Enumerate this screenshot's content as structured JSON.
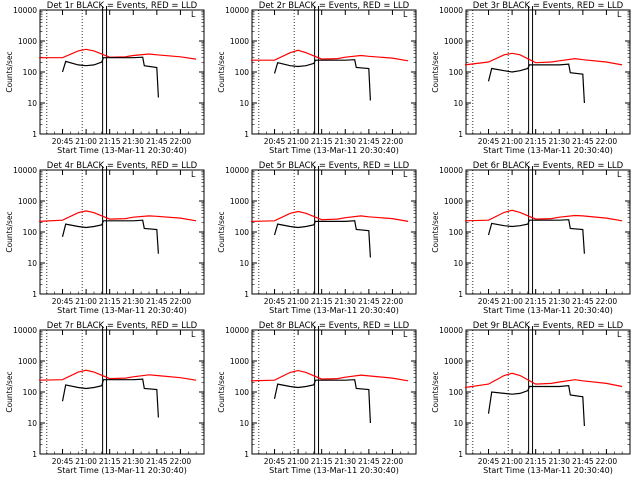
{
  "chart_data": [
    {
      "type": "line",
      "title": "Det 1r BLACK = Events, RED = LLD",
      "xlabel": "Start Time (13-Mar-11 20:30:40)",
      "ylabel": "Counts/sec",
      "yscale": "log",
      "ylim": [
        1,
        10000
      ],
      "yticks": [
        "1",
        "10",
        "100",
        "1000",
        "10000"
      ],
      "xlim": [
        "20:30:40",
        "22:15:00"
      ],
      "xticks": [
        "20:45",
        "21:00",
        "21:15",
        "21:30",
        "21:45",
        "22:00"
      ],
      "legend_letter": "L",
      "series": [
        {
          "name": "RED",
          "color": "#ff0000",
          "x": [
            "20:30",
            "20:45",
            "20:55",
            "21:00",
            "21:05",
            "21:15",
            "21:25",
            "21:30",
            "21:40",
            "21:45",
            "22:00",
            "22:10"
          ],
          "values": [
            290,
            290,
            480,
            540,
            480,
            300,
            310,
            340,
            380,
            360,
            310,
            260
          ]
        },
        {
          "name": "BLACK",
          "color": "#000000",
          "x": [
            "20:45",
            "20:47",
            "20:55",
            "21:00",
            "21:05",
            "21:10",
            "21:11",
            "21:30",
            "21:36",
            "21:37",
            "21:45",
            "21:46"
          ],
          "values": [
            100,
            220,
            170,
            160,
            170,
            210,
            290,
            290,
            300,
            160,
            140,
            15
          ]
        }
      ]
    },
    {
      "type": "line",
      "title": "Det 2r BLACK = Events, RED = LLD",
      "xlabel": "Start Time (13-Mar-11 20:30:40)",
      "ylabel": "Counts/sec",
      "yscale": "log",
      "ylim": [
        1,
        10000
      ],
      "yticks": [
        "1",
        "10",
        "100",
        "1000",
        "10000"
      ],
      "xlim": [
        "20:30:40",
        "22:15:00"
      ],
      "xticks": [
        "20:45",
        "21:00",
        "21:15",
        "21:30",
        "21:45",
        "22:00"
      ],
      "legend_letter": "L",
      "series": [
        {
          "name": "RED",
          "color": "#ff0000",
          "x": [
            "20:30",
            "20:45",
            "20:55",
            "21:00",
            "21:05",
            "21:15",
            "21:25",
            "21:30",
            "21:40",
            "21:45",
            "22:00",
            "22:10"
          ],
          "values": [
            240,
            240,
            420,
            500,
            420,
            260,
            270,
            300,
            340,
            320,
            280,
            230
          ]
        },
        {
          "name": "BLACK",
          "color": "#000000",
          "x": [
            "20:45",
            "20:47",
            "20:55",
            "21:00",
            "21:05",
            "21:10",
            "21:11",
            "21:30",
            "21:36",
            "21:37",
            "21:45",
            "21:46"
          ],
          "values": [
            90,
            200,
            160,
            150,
            160,
            190,
            240,
            240,
            250,
            140,
            130,
            12
          ]
        }
      ]
    },
    {
      "type": "line",
      "title": "Det 3r BLACK = Events, RED = LLD",
      "xlabel": "Start Time (13-Mar-11 20:30:40)",
      "ylabel": "Counts/sec",
      "yscale": "log",
      "ylim": [
        1,
        10000
      ],
      "yticks": [
        "1",
        "10",
        "100",
        "1000",
        "10000"
      ],
      "xlim": [
        "20:30:40",
        "22:15:00"
      ],
      "xticks": [
        "20:45",
        "21:00",
        "21:15",
        "21:30",
        "21:45",
        "22:00"
      ],
      "legend_letter": "L",
      "series": [
        {
          "name": "RED",
          "color": "#ff0000",
          "x": [
            "20:30",
            "20:45",
            "20:55",
            "21:00",
            "21:05",
            "21:15",
            "21:25",
            "21:30",
            "21:40",
            "21:45",
            "22:00",
            "22:10"
          ],
          "values": [
            170,
            210,
            360,
            400,
            360,
            200,
            210,
            230,
            270,
            250,
            210,
            170
          ]
        },
        {
          "name": "BLACK",
          "color": "#000000",
          "x": [
            "20:45",
            "20:47",
            "20:55",
            "21:00",
            "21:05",
            "21:10",
            "21:11",
            "21:30",
            "21:36",
            "21:37",
            "21:45",
            "21:46"
          ],
          "values": [
            50,
            130,
            110,
            100,
            110,
            130,
            170,
            170,
            180,
            95,
            85,
            10
          ]
        }
      ]
    },
    {
      "type": "line",
      "title": "Det 4r BLACK = Events, RED = LLD",
      "xlabel": "Start Time (13-Mar-11 20:30:40)",
      "ylabel": "Counts/sec",
      "yscale": "log",
      "ylim": [
        1,
        10000
      ],
      "yticks": [
        "1",
        "10",
        "100",
        "1000",
        "10000"
      ],
      "xlim": [
        "20:30:40",
        "22:15:00"
      ],
      "xticks": [
        "20:45",
        "21:00",
        "21:15",
        "21:30",
        "21:45",
        "22:00"
      ],
      "legend_letter": "L",
      "series": [
        {
          "name": "RED",
          "color": "#ff0000",
          "x": [
            "20:30",
            "20:45",
            "20:55",
            "21:00",
            "21:05",
            "21:15",
            "21:25",
            "21:30",
            "21:40",
            "21:45",
            "22:00",
            "22:10"
          ],
          "values": [
            220,
            240,
            420,
            480,
            420,
            260,
            270,
            300,
            330,
            320,
            280,
            230
          ]
        },
        {
          "name": "BLACK",
          "color": "#000000",
          "x": [
            "20:45",
            "20:47",
            "20:55",
            "21:00",
            "21:05",
            "21:10",
            "21:11",
            "21:30",
            "21:36",
            "21:37",
            "21:45",
            "21:46"
          ],
          "values": [
            70,
            180,
            150,
            140,
            150,
            170,
            230,
            230,
            240,
            130,
            120,
            20
          ]
        }
      ]
    },
    {
      "type": "line",
      "title": "Det 5r BLACK = Events, RED = LLD",
      "xlabel": "Start Time (13-Mar-11 20:30:40)",
      "ylabel": "Counts/sec",
      "yscale": "log",
      "ylim": [
        1,
        10000
      ],
      "yticks": [
        "1",
        "10",
        "100",
        "1000",
        "10000"
      ],
      "xlim": [
        "20:30:40",
        "22:15:00"
      ],
      "xticks": [
        "20:45",
        "21:00",
        "21:15",
        "21:30",
        "21:45",
        "22:00"
      ],
      "legend_letter": "L",
      "series": [
        {
          "name": "RED",
          "color": "#ff0000",
          "x": [
            "20:30",
            "20:45",
            "20:55",
            "21:00",
            "21:05",
            "21:15",
            "21:25",
            "21:30",
            "21:40",
            "21:45",
            "22:00",
            "22:10"
          ],
          "values": [
            220,
            230,
            400,
            460,
            400,
            250,
            260,
            290,
            330,
            310,
            270,
            220
          ]
        },
        {
          "name": "BLACK",
          "color": "#000000",
          "x": [
            "20:45",
            "20:47",
            "20:55",
            "21:00",
            "21:05",
            "21:10",
            "21:11",
            "21:30",
            "21:36",
            "21:37",
            "21:45",
            "21:46"
          ],
          "values": [
            80,
            180,
            150,
            140,
            150,
            170,
            220,
            220,
            230,
            120,
            110,
            15
          ]
        }
      ]
    },
    {
      "type": "line",
      "title": "Det 6r BLACK = Events, RED = LLD",
      "xlabel": "Start Time (13-Mar-11 20:30:40)",
      "ylabel": "Counts/sec",
      "yscale": "log",
      "ylim": [
        1,
        10000
      ],
      "yticks": [
        "1",
        "10",
        "100",
        "1000",
        "10000"
      ],
      "xlim": [
        "20:30:40",
        "22:15:00"
      ],
      "xticks": [
        "20:45",
        "21:00",
        "21:15",
        "21:30",
        "21:45",
        "22:00"
      ],
      "legend_letter": "L",
      "series": [
        {
          "name": "RED",
          "color": "#ff0000",
          "x": [
            "20:30",
            "20:45",
            "20:55",
            "21:00",
            "21:05",
            "21:15",
            "21:25",
            "21:30",
            "21:40",
            "21:45",
            "22:00",
            "22:10"
          ],
          "values": [
            230,
            240,
            430,
            500,
            430,
            260,
            270,
            300,
            340,
            330,
            280,
            230
          ]
        },
        {
          "name": "BLACK",
          "color": "#000000",
          "x": [
            "20:45",
            "20:47",
            "20:55",
            "21:00",
            "21:05",
            "21:10",
            "21:11",
            "21:30",
            "21:36",
            "21:37",
            "21:45",
            "21:46"
          ],
          "values": [
            80,
            190,
            160,
            150,
            160,
            180,
            240,
            240,
            250,
            130,
            120,
            20
          ]
        }
      ]
    },
    {
      "type": "line",
      "title": "Det 7r BLACK = Events, RED = LLD",
      "xlabel": "Start Time (13-Mar-11 20:30:40)",
      "ylabel": "Counts/sec",
      "yscale": "log",
      "ylim": [
        1,
        10000
      ],
      "yticks": [
        "1",
        "10",
        "100",
        "1000",
        "10000"
      ],
      "xlim": [
        "20:30:40",
        "22:15:00"
      ],
      "xticks": [
        "20:45",
        "21:00",
        "21:15",
        "21:30",
        "21:45",
        "22:00"
      ],
      "legend_letter": "L",
      "series": [
        {
          "name": "RED",
          "color": "#ff0000",
          "x": [
            "20:30",
            "20:45",
            "20:55",
            "21:00",
            "21:05",
            "21:15",
            "21:25",
            "21:30",
            "21:40",
            "21:45",
            "22:00",
            "22:10"
          ],
          "values": [
            240,
            250,
            440,
            500,
            440,
            270,
            280,
            310,
            360,
            340,
            290,
            240
          ]
        },
        {
          "name": "BLACK",
          "color": "#000000",
          "x": [
            "20:45",
            "20:47",
            "20:55",
            "21:00",
            "21:05",
            "21:10",
            "21:11",
            "21:30",
            "21:36",
            "21:37",
            "21:45",
            "21:46"
          ],
          "values": [
            50,
            170,
            140,
            130,
            140,
            160,
            250,
            250,
            260,
            130,
            120,
            15
          ]
        }
      ]
    },
    {
      "type": "line",
      "title": "Det 8r BLACK = Events, RED = LLD",
      "xlabel": "Start Time (13-Mar-11 20:30:40)",
      "ylabel": "Counts/sec",
      "yscale": "log",
      "ylim": [
        1,
        10000
      ],
      "yticks": [
        "1",
        "10",
        "100",
        "1000",
        "10000"
      ],
      "xlim": [
        "20:30:40",
        "22:15:00"
      ],
      "xticks": [
        "20:45",
        "21:00",
        "21:15",
        "21:30",
        "21:45",
        "22:00"
      ],
      "legend_letter": "L",
      "series": [
        {
          "name": "RED",
          "color": "#ff0000",
          "x": [
            "20:30",
            "20:45",
            "20:55",
            "21:00",
            "21:05",
            "21:15",
            "21:25",
            "21:30",
            "21:40",
            "21:45",
            "22:00",
            "22:10"
          ],
          "values": [
            230,
            240,
            430,
            490,
            430,
            260,
            270,
            300,
            350,
            330,
            280,
            230
          ]
        },
        {
          "name": "BLACK",
          "color": "#000000",
          "x": [
            "20:45",
            "20:47",
            "20:55",
            "21:00",
            "21:05",
            "21:10",
            "21:11",
            "21:30",
            "21:36",
            "21:37",
            "21:45",
            "21:46"
          ],
          "values": [
            60,
            180,
            150,
            140,
            150,
            170,
            240,
            240,
            250,
            130,
            120,
            10
          ]
        }
      ]
    },
    {
      "type": "line",
      "title": "Det 9r BLACK = Events, RED = LLD",
      "xlabel": "Start Time (13-Mar-11 20:30:40)",
      "ylabel": "Counts/sec",
      "yscale": "log",
      "ylim": [
        1,
        10000
      ],
      "yticks": [
        "1",
        "10",
        "100",
        "1000",
        "10000"
      ],
      "xlim": [
        "20:30:40",
        "22:15:00"
      ],
      "xticks": [
        "20:45",
        "21:00",
        "21:15",
        "21:30",
        "21:45",
        "22:00"
      ],
      "legend_letter": "L",
      "series": [
        {
          "name": "RED",
          "color": "#ff0000",
          "x": [
            "20:30",
            "20:45",
            "20:55",
            "21:00",
            "21:05",
            "21:15",
            "21:25",
            "21:30",
            "21:40",
            "21:45",
            "22:00",
            "22:10"
          ],
          "values": [
            140,
            180,
            340,
            400,
            340,
            180,
            190,
            210,
            250,
            230,
            190,
            150
          ]
        },
        {
          "name": "BLACK",
          "color": "#000000",
          "x": [
            "20:45",
            "20:47",
            "20:55",
            "21:00",
            "21:05",
            "21:10",
            "21:11",
            "21:30",
            "21:36",
            "21:37",
            "21:45",
            "21:46"
          ],
          "values": [
            20,
            100,
            90,
            85,
            90,
            110,
            150,
            150,
            160,
            80,
            70,
            8
          ]
        }
      ]
    }
  ]
}
